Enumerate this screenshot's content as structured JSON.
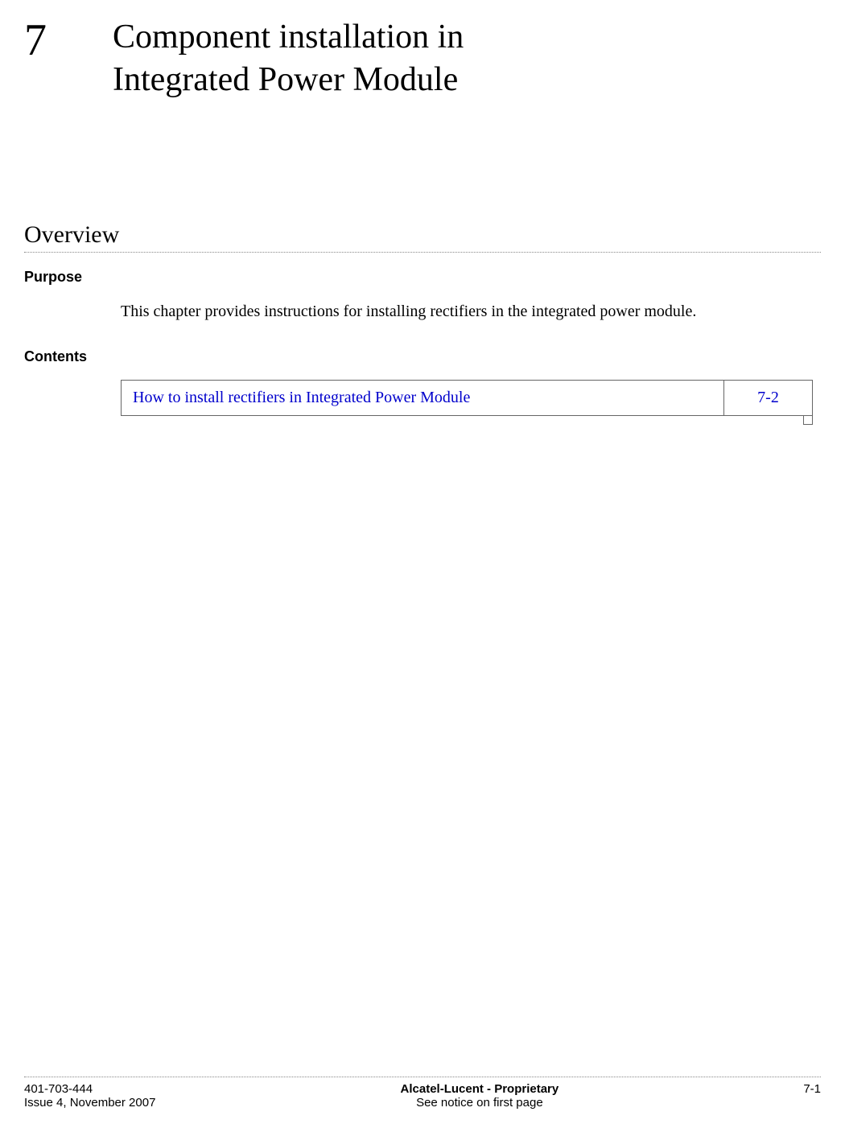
{
  "chapter": {
    "number": "7",
    "title_line1": "Component installation in",
    "title_line2": "Integrated Power Module"
  },
  "overview": {
    "heading": "Overview",
    "purpose_label": "Purpose",
    "purpose_text": "This chapter provides instructions for installing rectifiers in the integrated power module.",
    "contents_label": "Contents",
    "contents_item_title": "How to install rectifiers in Integrated Power Module",
    "contents_item_page": "7-2",
    "link_color": "#0000cc"
  },
  "footer": {
    "doc_id": "401-703-444",
    "issue": "Issue 4, November 2007",
    "company": "Alcatel-Lucent - Proprietary",
    "notice": "See notice on first page",
    "page_number": "7-1"
  },
  "colors": {
    "text": "#000000",
    "background": "#ffffff",
    "dotted_rule": "#888888",
    "table_border": "#666666"
  }
}
